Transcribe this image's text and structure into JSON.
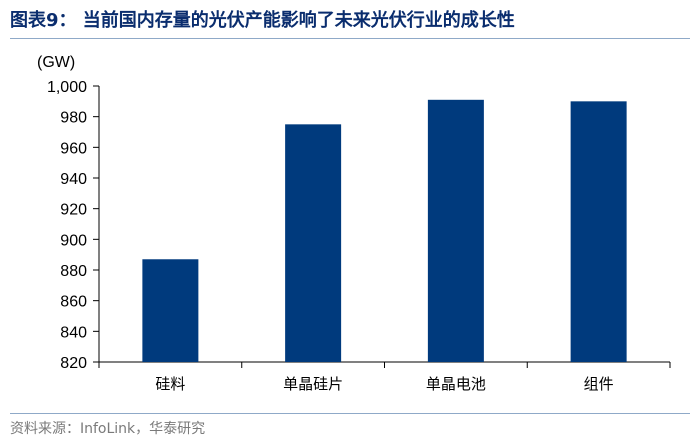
{
  "header": {
    "title": "图表9：  当前国内存量的光伏产能影响了未来光伏行业的成长性"
  },
  "footer": {
    "source": "资料来源：InfoLink，华泰研究"
  },
  "chart_data": {
    "type": "bar",
    "unit_label": "(GW)",
    "categories": [
      "硅料",
      "单晶硅片",
      "单晶电池",
      "组件"
    ],
    "values": [
      887,
      975,
      991,
      990
    ],
    "ylim": [
      820,
      1000
    ],
    "yticks": [
      820,
      840,
      860,
      880,
      900,
      920,
      940,
      960,
      980,
      1000
    ],
    "ytick_labels": [
      "820",
      "840",
      "860",
      "880",
      "900",
      "920",
      "940",
      "960",
      "980",
      "1,000"
    ],
    "bar_color": "#003a7d",
    "grid": false,
    "legend": "none"
  }
}
